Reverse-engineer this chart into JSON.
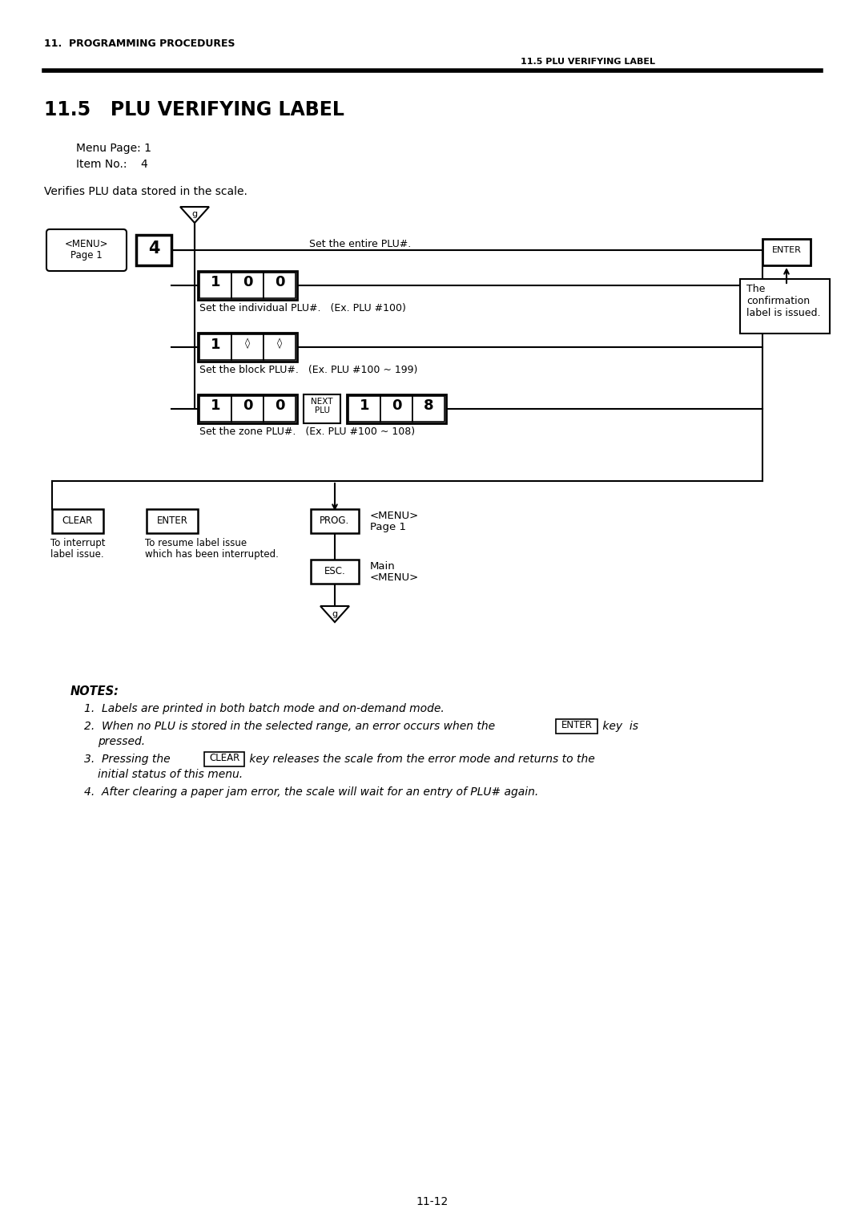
{
  "page_header_left": "11.  PROGRAMMING PROCEDURES",
  "page_header_right": "11.5 PLU VERIFYING LABEL",
  "section_title": "11.5   PLU VERIFYING LABEL",
  "menu_page": "Menu Page: 1",
  "item_no": "Item No.:    4",
  "description": "Verifies PLU data stored in the scale.",
  "page_number": "11-12",
  "bg_color": "#ffffff",
  "text_color": "#000000"
}
